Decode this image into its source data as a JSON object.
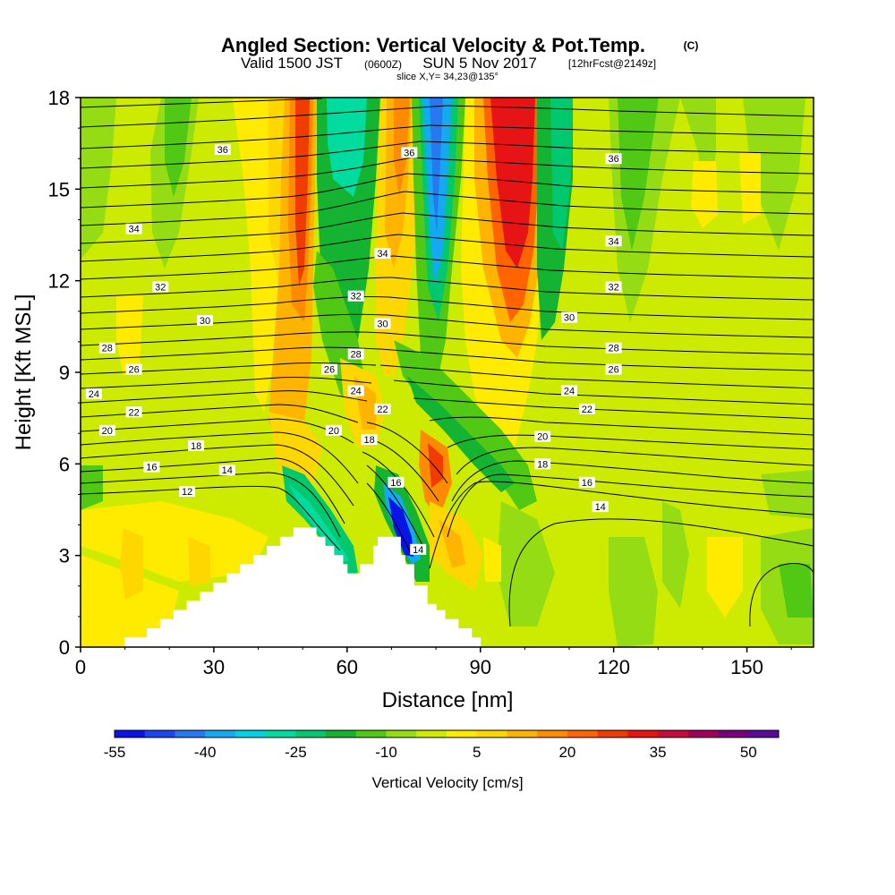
{
  "header": {
    "title": "Angled Section: Vertical Velocity & Pot.Temp.",
    "title_unit": "(C)",
    "valid_prefix": "Valid 1500 JST",
    "valid_zulu": "(0600Z)",
    "valid_date": "SUN 5 Nov 2017",
    "forecast": "[12hrFcst@2149z]",
    "slice": "slice X,Y= 34,23@135°"
  },
  "chart_data": {
    "type": "heatmap",
    "xlabel": "Distance [nm]",
    "ylabel": "Height [Kft MSL]",
    "xlim": [
      0,
      165
    ],
    "ylim": [
      0,
      18
    ],
    "xticks": [
      0,
      30,
      60,
      90,
      120,
      150
    ],
    "yticks": [
      0,
      3,
      6,
      9,
      12,
      15,
      18
    ],
    "colorbar": {
      "label": "Vertical Velocity [cm/s]",
      "range": [
        -55,
        55
      ],
      "step": 5,
      "tick_values": [
        -55,
        -40,
        -25,
        -10,
        5,
        20,
        35,
        50
      ],
      "colors": [
        "#0a14e6",
        "#1e46f0",
        "#2878f0",
        "#14aaf0",
        "#00d2e6",
        "#00dca0",
        "#00c86e",
        "#14b432",
        "#50c814",
        "#96dc14",
        "#cdeb00",
        "#ffeb00",
        "#ffd700",
        "#ffb400",
        "#ff8c00",
        "#ff6400",
        "#f03c00",
        "#e61414",
        "#c80a3c",
        "#a0005a",
        "#78007d",
        "#5a0a96"
      ]
    },
    "theta_contours": {
      "unit": "C",
      "levels": [
        12,
        14,
        16,
        18,
        20,
        22,
        24,
        26,
        28,
        30,
        32,
        34,
        36
      ],
      "labels": [
        {
          "x": 24,
          "y": 5.1,
          "text": "12"
        },
        {
          "x": 33,
          "y": 5.8,
          "text": "14"
        },
        {
          "x": 117,
          "y": 4.6,
          "text": "14"
        },
        {
          "x": 76,
          "y": 3.2,
          "text": "14"
        },
        {
          "x": 16,
          "y": 5.9,
          "text": "16"
        },
        {
          "x": 71,
          "y": 5.4,
          "text": "16"
        },
        {
          "x": 114,
          "y": 5.4,
          "text": "16"
        },
        {
          "x": 26,
          "y": 6.6,
          "text": "18"
        },
        {
          "x": 65,
          "y": 6.8,
          "text": "18"
        },
        {
          "x": 104,
          "y": 6.0,
          "text": "18"
        },
        {
          "x": 6,
          "y": 7.1,
          "text": "20"
        },
        {
          "x": 57,
          "y": 7.1,
          "text": "20"
        },
        {
          "x": 104,
          "y": 6.9,
          "text": "20"
        },
        {
          "x": 12,
          "y": 7.7,
          "text": "22"
        },
        {
          "x": 68,
          "y": 7.8,
          "text": "22"
        },
        {
          "x": 114,
          "y": 7.8,
          "text": "22"
        },
        {
          "x": 3,
          "y": 8.3,
          "text": "24"
        },
        {
          "x": 62,
          "y": 8.4,
          "text": "24"
        },
        {
          "x": 110,
          "y": 8.4,
          "text": "24"
        },
        {
          "x": 12,
          "y": 9.1,
          "text": "26"
        },
        {
          "x": 56,
          "y": 9.1,
          "text": "26"
        },
        {
          "x": 120,
          "y": 9.1,
          "text": "26"
        },
        {
          "x": 6,
          "y": 9.8,
          "text": "28"
        },
        {
          "x": 62,
          "y": 9.6,
          "text": "28"
        },
        {
          "x": 120,
          "y": 9.8,
          "text": "28"
        },
        {
          "x": 28,
          "y": 10.7,
          "text": "30"
        },
        {
          "x": 68,
          "y": 10.6,
          "text": "30"
        },
        {
          "x": 110,
          "y": 10.8,
          "text": "30"
        },
        {
          "x": 18,
          "y": 11.8,
          "text": "32"
        },
        {
          "x": 62,
          "y": 11.5,
          "text": "32"
        },
        {
          "x": 120,
          "y": 11.8,
          "text": "32"
        },
        {
          "x": 12,
          "y": 13.7,
          "text": "34"
        },
        {
          "x": 68,
          "y": 12.9,
          "text": "34"
        },
        {
          "x": 120,
          "y": 13.3,
          "text": "34"
        },
        {
          "x": 32,
          "y": 16.3,
          "text": "36"
        },
        {
          "x": 74,
          "y": 16.2,
          "text": "36"
        },
        {
          "x": 120,
          "y": 16.0,
          "text": "36"
        }
      ]
    },
    "terrain_profile": [
      [
        0,
        0
      ],
      [
        10,
        0
      ],
      [
        10,
        0.3
      ],
      [
        15,
        0.3
      ],
      [
        15,
        0.6
      ],
      [
        18,
        0.6
      ],
      [
        18,
        0.9
      ],
      [
        21,
        0.9
      ],
      [
        21,
        1.2
      ],
      [
        24,
        1.2
      ],
      [
        24,
        1.5
      ],
      [
        27,
        1.5
      ],
      [
        27,
        1.8
      ],
      [
        30,
        1.8
      ],
      [
        30,
        2.1
      ],
      [
        33,
        2.1
      ],
      [
        33,
        2.4
      ],
      [
        36,
        2.4
      ],
      [
        36,
        2.7
      ],
      [
        39,
        2.7
      ],
      [
        39,
        3.0
      ],
      [
        42,
        3.0
      ],
      [
        42,
        3.3
      ],
      [
        45,
        3.3
      ],
      [
        45,
        3.6
      ],
      [
        48,
        3.6
      ],
      [
        48,
        3.9
      ],
      [
        53,
        3.9
      ],
      [
        53,
        3.6
      ],
      [
        55,
        3.6
      ],
      [
        55,
        3.3
      ],
      [
        57,
        3.3
      ],
      [
        57,
        3.0
      ],
      [
        59,
        3.0
      ],
      [
        59,
        2.7
      ],
      [
        60,
        2.7
      ],
      [
        60,
        2.4
      ],
      [
        63,
        2.4
      ],
      [
        63,
        2.7
      ],
      [
        66,
        2.7
      ],
      [
        66,
        3.3
      ],
      [
        67,
        3.3
      ],
      [
        67,
        3.6
      ],
      [
        72,
        3.6
      ],
      [
        72,
        3.0
      ],
      [
        73,
        3.0
      ],
      [
        73,
        2.7
      ],
      [
        75,
        2.7
      ],
      [
        75,
        2.0
      ],
      [
        78,
        2.0
      ],
      [
        78,
        1.4
      ],
      [
        80,
        1.4
      ],
      [
        80,
        1.2
      ],
      [
        82,
        1.2
      ],
      [
        82,
        0.9
      ],
      [
        85,
        0.9
      ],
      [
        85,
        0.6
      ],
      [
        88,
        0.6
      ],
      [
        88,
        0.3
      ],
      [
        90,
        0.3
      ],
      [
        90,
        0
      ]
    ]
  }
}
